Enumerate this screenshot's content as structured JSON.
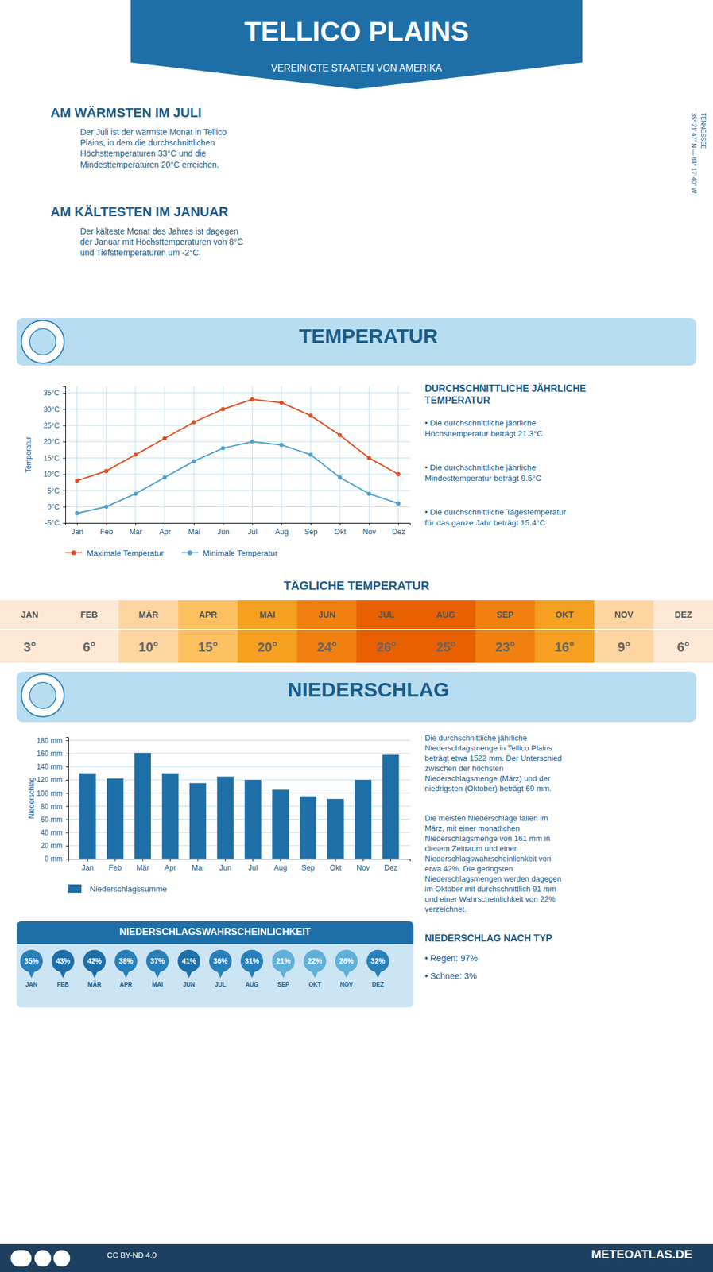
{
  "title": "TELLICO PLAINS",
  "subtitle": "VEREINIGTE STAATEN VON AMERIKA",
  "annotations": [
    "AM WÄRMSTEN IM JULI",
    "Der Juli ist der wärmste Monat in Tellico\nPlains, in dem die durchschnittlichen\nHöchsttemperaturen 33°C und die\nMindesttemperaturen 20°C erreichen.",
    "AM KÄLTESTEN IM JANUAR",
    "Der kälteste Monat des Jahres ist dagegen\nder Januar mit Höchsttemperaturen von 8°C\nund Tiefsttemperaturen um -2°C.",
    "TENNESSEE",
    "35° 21' 47'' N — 84° 17' 40'' W",
    "DURCHSCHNITTLICHE JÄHRLICHE\nTEMPERATUR",
    "• Die durchschnittliche jährliche\nHöchsttemperatur beträgt 21.3°C",
    "• Die durchschnittliche jährliche\nMindesttemperatur beträgt 9.5°C",
    "• Die durchschnittliche Tagestemperatur\nfür das ganze Jahr beträgt 15.4°C",
    "Die durchschnittliche jährliche\nNiederschlagsmenge in Tellico Plains\nbeträgt etwa 1522 mm. Der Unterschied\nzwischen der höchsten\nNiederschlagsmenge (März) und der\nniedrigsten (Oktober) beträgt 69 mm.",
    "Die meisten Niederschläge fallen im\nMärz, mit einer monatlichen\nNiederschlagsmenge von 161 mm in\ndiesem Zeitraum und einer\nNiederschlagswahrscheinlichkeit von\netwa 42%. Die geringsten\nNiederschlagsmengen werden dagegen\nim Oktober mit durchschnittlich 91 mm\nund einer Wahrscheinlichkeit von 22%\nverzeichnet.",
    "NIEDERSCHLAG NACH TYP",
    "• Regen: 97%",
    "• Schnee: 3%",
    "METEOATLAS.DE",
    "CC BY-ND 4.0"
  ],
  "chart_data": [
    {
      "type": "line",
      "title": "TEMPERATUR",
      "categories": [
        "Jan",
        "Feb",
        "Mär",
        "Apr",
        "Mai",
        "Jun",
        "Jul",
        "Aug",
        "Sep",
        "Okt",
        "Nov",
        "Dez"
      ],
      "series": [
        {
          "name": "Maximale Temperatur",
          "color": "#e05020",
          "marker": "circle",
          "values": [
            8,
            11,
            16,
            21,
            26,
            30,
            33,
            32,
            28,
            22,
            15,
            10
          ]
        },
        {
          "name": "Minimale Temperatur",
          "color": "#50a0d0",
          "marker": "circle",
          "values": [
            -2,
            0,
            4,
            9,
            14,
            18,
            20,
            19,
            16,
            9,
            4,
            1
          ]
        }
      ],
      "ylabel": "Temperatur",
      "ylim": [
        -5,
        37
      ],
      "yticks": [
        {
          "value": -5,
          "label": "-5°C"
        },
        {
          "value": 0,
          "label": "0°C"
        },
        {
          "value": 5,
          "label": "5°C"
        },
        {
          "value": 10,
          "label": "10°C"
        },
        {
          "value": 15,
          "label": "15°C"
        },
        {
          "value": 20,
          "label": "20°C"
        },
        {
          "value": 25,
          "label": "25°C"
        },
        {
          "value": 30,
          "label": "30°C"
        },
        {
          "value": 35,
          "label": "35°C"
        }
      ],
      "grid": true,
      "legend": "bottom"
    },
    {
      "type": "table",
      "title": "TÄGLICHE TEMPERATUR",
      "categories": [
        "JAN",
        "FEB",
        "MÄR",
        "APR",
        "MAI",
        "JUN",
        "JUL",
        "AUG",
        "SEP",
        "OKT",
        "NOV",
        "DEZ"
      ],
      "values": [
        3,
        6,
        10,
        15,
        20,
        24,
        26,
        25,
        23,
        16,
        9,
        6
      ],
      "value_labels": [
        "3°",
        "6°",
        "10°",
        "15°",
        "20°",
        "24°",
        "26°",
        "25°",
        "23°",
        "16°",
        "9°",
        "6°"
      ],
      "colors": [
        "#fce8d5",
        "#fce8d5",
        "#fcd5a0",
        "#fcc060",
        "#f5a020",
        "#f08010",
        "#e86000",
        "#e86000",
        "#f08010",
        "#f5a020",
        "#fcd5a0",
        "#fce8d5"
      ],
      "data_labels": true
    },
    {
      "type": "bar",
      "title": "NIEDERSCHLAG",
      "categories": [
        "Jan",
        "Feb",
        "Mär",
        "Apr",
        "Mai",
        "Jun",
        "Jul",
        "Aug",
        "Sep",
        "Okt",
        "Nov",
        "Dez"
      ],
      "series": [
        {
          "name": "Niederschlagssumme",
          "color": "#1e6fa8",
          "values": [
            130,
            122,
            161,
            130,
            115,
            125,
            120,
            105,
            95,
            91,
            120,
            158
          ]
        }
      ],
      "ylabel": "Niederschlag",
      "ylim": [
        0,
        185
      ],
      "yticks": [
        {
          "value": 0,
          "label": "0 mm"
        },
        {
          "value": 20,
          "label": "20 mm"
        },
        {
          "value": 40,
          "label": "40 mm"
        },
        {
          "value": 60,
          "label": "60 mm"
        },
        {
          "value": 80,
          "label": "80 mm"
        },
        {
          "value": 100,
          "label": "100 mm"
        },
        {
          "value": 120,
          "label": "120 mm"
        },
        {
          "value": 140,
          "label": "140 mm"
        },
        {
          "value": 160,
          "label": "160 mm"
        },
        {
          "value": 180,
          "label": "180 mm"
        }
      ],
      "grid": "y",
      "legend": "bottom"
    },
    {
      "type": "pictogram",
      "title": "NIEDERSCHLAGSWAHRSCHEINLICHKEIT",
      "categories": [
        "JAN",
        "FEB",
        "MÄR",
        "APR",
        "MAI",
        "JUN",
        "JUL",
        "AUG",
        "SEP",
        "OKT",
        "NOV",
        "DEZ"
      ],
      "values": [
        35,
        43,
        42,
        38,
        37,
        41,
        36,
        31,
        21,
        22,
        26,
        32
      ],
      "value_labels": [
        "35%",
        "43%",
        "42%",
        "38%",
        "37%",
        "41%",
        "36%",
        "31%",
        "21%",
        "22%",
        "26%",
        "32%"
      ],
      "colors": [
        "#2980b9",
        "#1e6fa8",
        "#1e6fa8",
        "#2980b9",
        "#2980b9",
        "#1e6fa8",
        "#2980b9",
        "#2980b9",
        "#60b0d8",
        "#60b0d8",
        "#60b0d8",
        "#2980b9"
      ],
      "data_labels": true
    }
  ]
}
